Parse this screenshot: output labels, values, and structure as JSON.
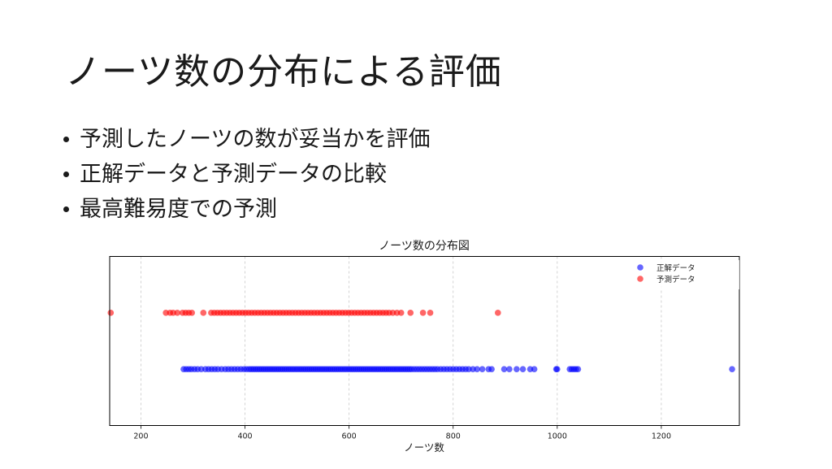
{
  "slide": {
    "title": "ノーツ数の分布による評価",
    "bullets": [
      "予測したノーツの数が妥当かを評価",
      "正解データと予測データの比較",
      "最高難易度での予測"
    ]
  },
  "chart_data": {
    "type": "scatter",
    "title": "ノーツ数の分布図",
    "xlabel": "ノーツ数",
    "ylabel": "",
    "xlim": [
      140,
      1350
    ],
    "x_ticks": [
      200,
      400,
      600,
      800,
      1000,
      1200
    ],
    "grid": "vertical dashed",
    "legend_position": "top-right",
    "series": [
      {
        "name": "正解データ",
        "color": "#0000ff",
        "row": 1,
        "x": [
          282,
          287,
          292,
          297,
          303,
          309,
          316,
          324,
          330,
          336,
          342,
          348,
          355,
          362,
          368,
          374,
          380,
          386,
          392,
          398,
          403,
          408,
          412,
          416,
          420,
          424,
          428,
          432,
          436,
          440,
          444,
          448,
          452,
          456,
          460,
          464,
          468,
          472,
          476,
          480,
          484,
          488,
          492,
          496,
          500,
          504,
          508,
          512,
          516,
          520,
          524,
          528,
          532,
          536,
          540,
          544,
          548,
          552,
          556,
          560,
          564,
          568,
          572,
          576,
          580,
          584,
          588,
          592,
          596,
          600,
          604,
          608,
          612,
          616,
          620,
          624,
          628,
          632,
          636,
          640,
          644,
          648,
          652,
          656,
          660,
          664,
          668,
          672,
          676,
          680,
          684,
          688,
          692,
          696,
          700,
          704,
          708,
          712,
          716,
          720,
          725,
          730,
          735,
          740,
          745,
          750,
          755,
          760,
          765,
          770,
          776,
          782,
          788,
          794,
          800,
          806,
          812,
          818,
          824,
          830,
          838,
          846,
          856,
          868,
          874,
          898,
          908,
          922,
          934,
          948,
          956,
          998,
          1000,
          1024,
          1028,
          1032,
          1036,
          1040,
          1336
        ]
      },
      {
        "name": "予測データ",
        "color": "#ff0000",
        "row": 2,
        "x": [
          142,
          248,
          256,
          262,
          270,
          280,
          286,
          292,
          298,
          320,
          335,
          341,
          347,
          353,
          359,
          365,
          371,
          377,
          383,
          389,
          395,
          401,
          407,
          413,
          419,
          425,
          431,
          437,
          443,
          449,
          455,
          461,
          467,
          473,
          479,
          485,
          491,
          497,
          503,
          509,
          515,
          521,
          527,
          533,
          539,
          545,
          551,
          557,
          563,
          569,
          575,
          581,
          587,
          593,
          599,
          605,
          611,
          617,
          623,
          629,
          635,
          641,
          647,
          653,
          659,
          665,
          671,
          677,
          684,
          692,
          700,
          718,
          742,
          756,
          886
        ]
      }
    ]
  }
}
